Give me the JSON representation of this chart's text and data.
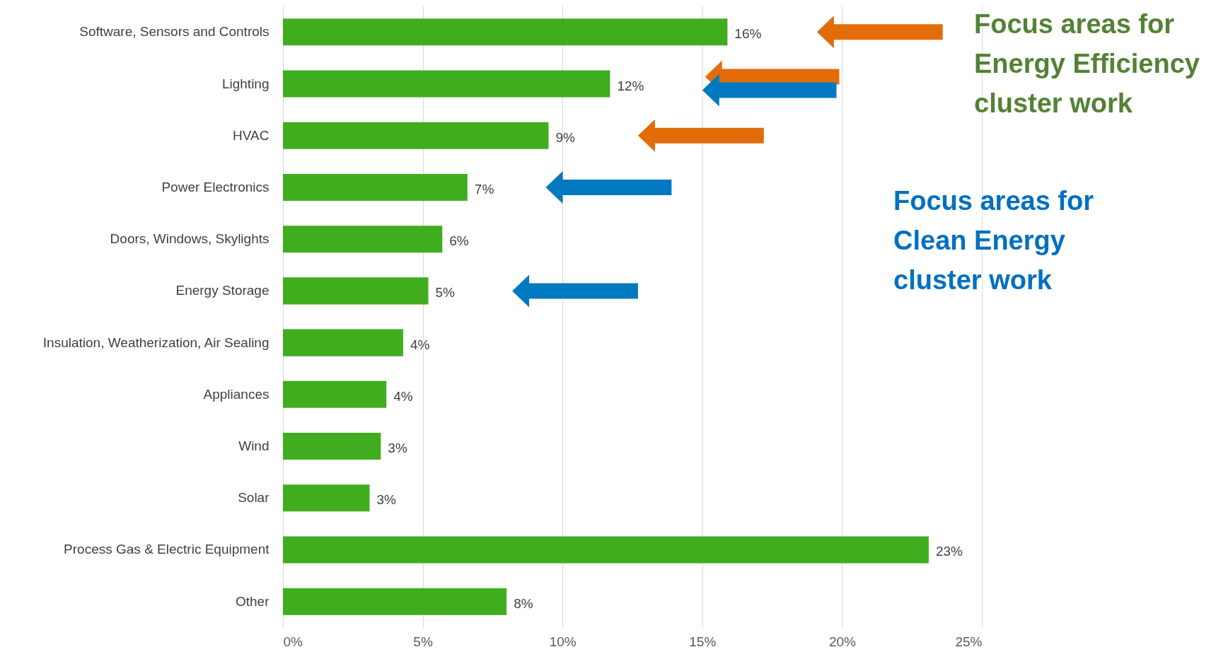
{
  "chart_data": {
    "type": "bar",
    "orientation": "horizontal",
    "categories": [
      "Software, Sensors and Controls",
      "Lighting",
      "HVAC",
      "Power Electronics",
      "Doors, Windows, Skylights",
      "Energy Storage",
      "Insulation, Weatherization, Air Sealing",
      "Appliances",
      "Wind",
      "Solar",
      "Process Gas & Electric Equipment",
      "Other"
    ],
    "values": [
      15.9,
      11.7,
      9.5,
      6.6,
      5.7,
      5.2,
      4.3,
      3.7,
      3.5,
      3.1,
      23.1,
      8.0
    ],
    "value_labels": [
      "16%",
      "12%",
      "9%",
      "7%",
      "6%",
      "5%",
      "4%",
      "4%",
      "3%",
      "3%",
      "23%",
      "8%"
    ],
    "color": "#40ad1e",
    "xlim": [
      0,
      25
    ],
    "xticks": [
      {
        "value": 0,
        "label": "0%"
      },
      {
        "value": 5,
        "label": "5%"
      },
      {
        "value": 10,
        "label": "10%"
      },
      {
        "value": 15,
        "label": "15%"
      },
      {
        "value": 20,
        "label": "20%"
      },
      {
        "value": 25,
        "label": "25%"
      }
    ],
    "grid": "x",
    "annotations": [
      "Focus areas for Energy Efficiency cluster work",
      "Focus areas for Clean Energy cluster work"
    ]
  }
}
